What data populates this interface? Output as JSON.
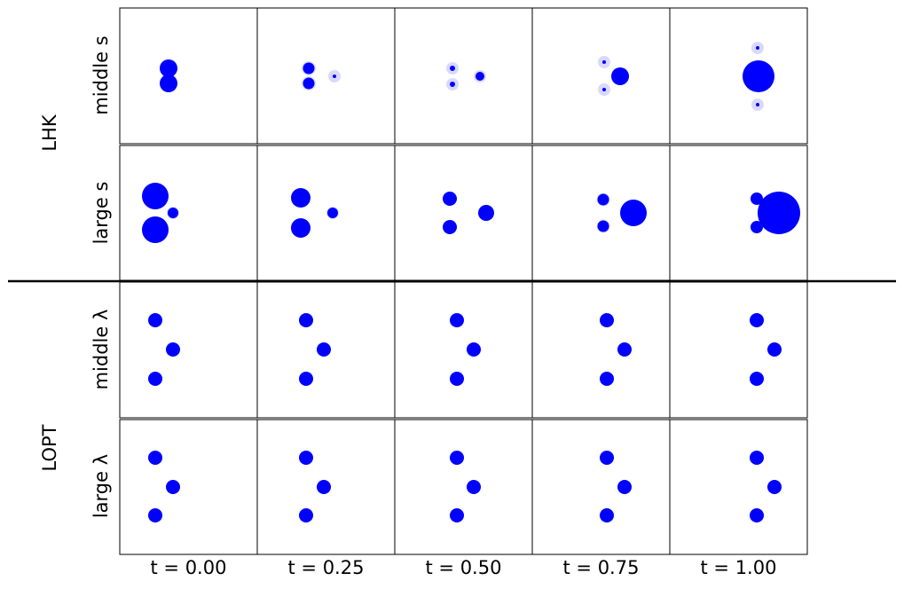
{
  "row_groups": [
    {
      "label": "LHK",
      "rows": [
        "middle s",
        "large s"
      ]
    },
    {
      "label": "LOPT",
      "rows": [
        "middle λ",
        "large λ"
      ]
    }
  ],
  "columns": [
    "t = 0.00",
    "t = 0.25",
    "t = 0.50",
    "t = 0.75",
    "t = 1.00"
  ]
}
